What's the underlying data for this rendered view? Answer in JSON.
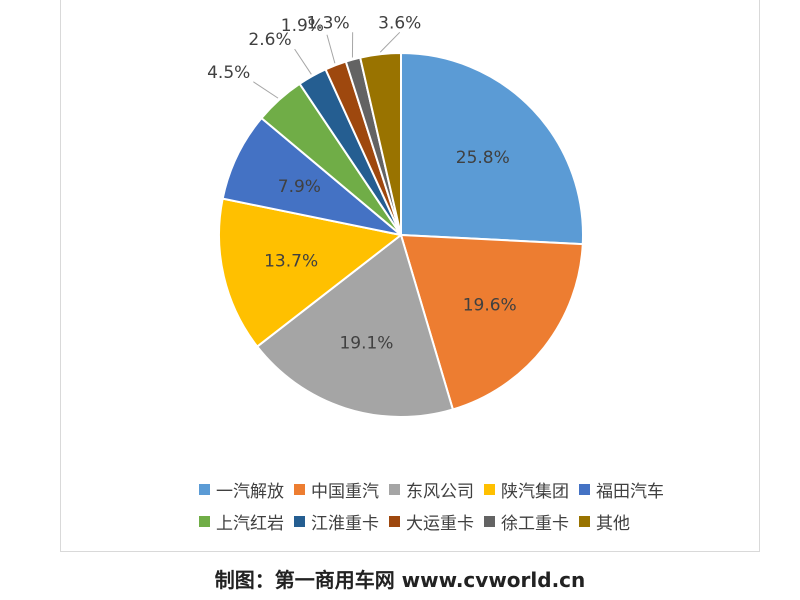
{
  "chart_data": {
    "type": "pie",
    "start_angle_deg": 0,
    "direction": "clockwise",
    "slices": [
      {
        "label": "一汽解放",
        "value": 25.8,
        "value_label": "25.8%",
        "color": "#5b9bd5"
      },
      {
        "label": "中国重汽",
        "value": 19.6,
        "value_label": "19.6%",
        "color": "#ed7d31"
      },
      {
        "label": "东风公司",
        "value": 19.1,
        "value_label": "19.1%",
        "color": "#a5a5a5"
      },
      {
        "label": "陕汽集团",
        "value": 13.7,
        "value_label": "13.7%",
        "color": "#ffc000"
      },
      {
        "label": "福田汽车",
        "value": 7.9,
        "value_label": "7.9%",
        "color": "#4472c4"
      },
      {
        "label": "上汽红岩",
        "value": 4.5,
        "value_label": "4.5%",
        "color": "#70ad47"
      },
      {
        "label": "江淮重卡",
        "value": 2.6,
        "value_label": "2.6%",
        "color": "#255e91"
      },
      {
        "label": "大运重卡",
        "value": 1.9,
        "value_label": "1.9%",
        "color": "#9e480e"
      },
      {
        "label": "徐工重卡",
        "value": 1.3,
        "value_label": "1.3%",
        "color": "#636363"
      },
      {
        "label": "其他",
        "value": 3.6,
        "value_label": "3.6%",
        "color": "#997300"
      }
    ],
    "legend_position": "bottom"
  },
  "caption": "制图：第一商用车网 www.cvworld.cn"
}
